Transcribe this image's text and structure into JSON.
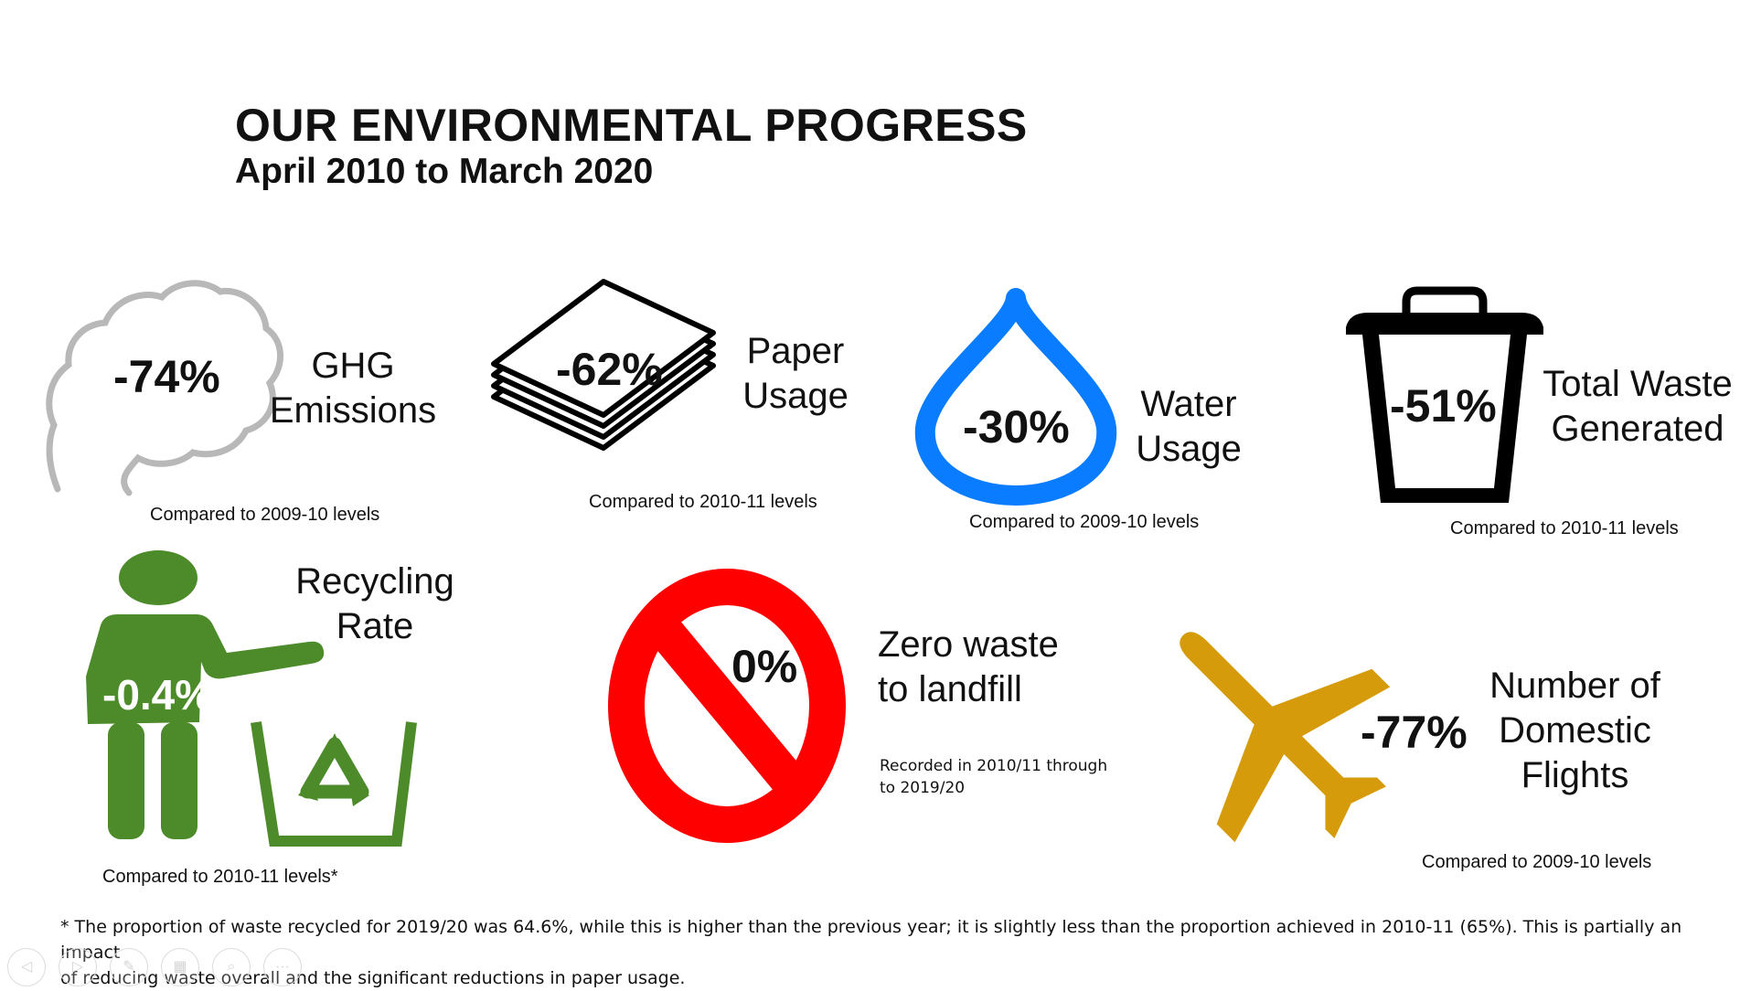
{
  "header": {
    "title": "OUR ENVIRONMENTAL PROGRESS",
    "subtitle": "April 2010 to March 2020"
  },
  "metrics": {
    "ghg": {
      "value": "-74%",
      "label_line1": "GHG",
      "label_line2": "Emissions",
      "note": "Compared to 2009-10 levels",
      "icon": "cloud-icon"
    },
    "paper": {
      "value": "-62%",
      "label_line1": "Paper",
      "label_line2": "Usage",
      "note": "Compared to 2010-11 levels",
      "icon": "paper-stack-icon"
    },
    "water": {
      "value": "-30%",
      "label_line1": "Water",
      "label_line2": "Usage",
      "note": "Compared to 2009-10 levels",
      "icon": "water-drop-icon",
      "color": "#0a7cff"
    },
    "waste": {
      "value": "-51%",
      "label_line1": "Total Waste",
      "label_line2": "Generated",
      "note": "Compared to 2010-11 levels",
      "icon": "bin-icon"
    },
    "recycling": {
      "value": "-0.4%",
      "label_line1": "Recycling",
      "label_line2": "Rate",
      "note": "Compared to 2010-11 levels*",
      "icon": "person-recycling-icon",
      "color": "#4c8a2a"
    },
    "landfill": {
      "value": "0%",
      "label_line1": "Zero waste",
      "label_line2": "to landfill",
      "note_line1": "Recorded in 2010/11 through",
      "note_line2": "to 2019/20",
      "icon": "prohibited-icon",
      "color": "#ff0000"
    },
    "flights": {
      "value": "-77%",
      "label_line1": "Number of",
      "label_line2": "Domestic",
      "label_line3": "Flights",
      "note": "Compared to 2009-10 levels",
      "icon": "airplane-icon",
      "color": "#d69b0b"
    }
  },
  "footnote": {
    "line1": "* The proportion of waste recycled for 2019/20 was 64.6%, while this is higher than the previous year; it is slightly less than the proportion achieved in 2010-11 (65%). This is partially an impact",
    "line2": "of reducing waste overall and the significant reductions in paper usage."
  },
  "slide_controls": [
    {
      "name": "previous-slide",
      "icon": "arrow-left-icon",
      "glyph": "◁"
    },
    {
      "name": "next-slide",
      "icon": "arrow-right-icon",
      "glyph": "▷"
    },
    {
      "name": "pen-tool",
      "icon": "pen-icon",
      "glyph": "✎"
    },
    {
      "name": "see-all-slides",
      "icon": "slides-grid-icon",
      "glyph": "▦"
    },
    {
      "name": "zoom",
      "icon": "magnifier-icon",
      "glyph": "⌕"
    },
    {
      "name": "more-options",
      "icon": "more-icon",
      "glyph": "···"
    }
  ]
}
